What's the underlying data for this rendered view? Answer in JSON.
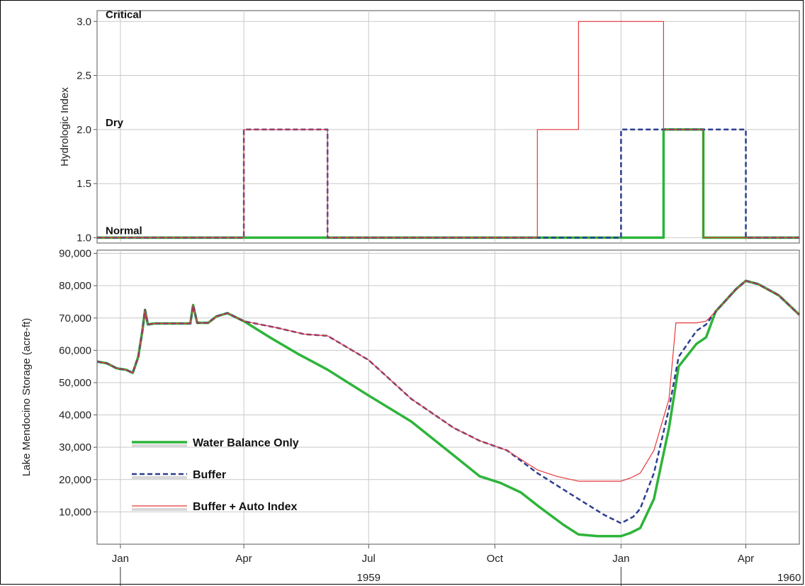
{
  "chart_data": [
    {
      "type": "line",
      "ylabel": "Hydrologic Index",
      "ylim": [
        0.95,
        3.1
      ],
      "yticks": [
        "1.0",
        "1.5",
        "2.0",
        "2.5",
        "3.0"
      ],
      "y_category_labels": [
        {
          "value": 1.0,
          "label": "Normal"
        },
        {
          "value": 2.0,
          "label": "Dry"
        },
        {
          "value": 3.0,
          "label": "Critical"
        }
      ],
      "grid": true,
      "series": [
        {
          "name": "Water Balance Only",
          "color": "#2db43a",
          "style": "solid-thick",
          "points": [
            [
              "1958-12-15",
              1
            ],
            [
              "1959-04-01",
              1
            ],
            [
              "1959-04-01",
              1
            ],
            [
              "1960-02-01",
              1
            ],
            [
              "1960-02-01",
              2
            ],
            [
              "1960-03-01",
              2
            ],
            [
              "1960-03-01",
              1
            ],
            [
              "1960-05-10",
              1
            ]
          ]
        },
        {
          "name": "Buffer",
          "color": "#2c3e91",
          "style": "dashed",
          "points": [
            [
              "1958-12-15",
              1
            ],
            [
              "1959-04-01",
              1
            ],
            [
              "1959-04-01",
              2
            ],
            [
              "1959-06-01",
              2
            ],
            [
              "1959-06-01",
              1
            ],
            [
              "1960-01-01",
              1
            ],
            [
              "1960-01-01",
              2
            ],
            [
              "1960-04-01",
              2
            ],
            [
              "1960-04-01",
              1
            ],
            [
              "1960-05-10",
              1
            ]
          ]
        },
        {
          "name": "Buffer + Auto Index",
          "color": "#e8383b",
          "style": "solid-thin",
          "points": [
            [
              "1958-12-15",
              1
            ],
            [
              "1959-04-01",
              1
            ],
            [
              "1959-04-01",
              2
            ],
            [
              "1959-06-01",
              2
            ],
            [
              "1959-06-01",
              1
            ],
            [
              "1959-11-01",
              1
            ],
            [
              "1959-11-01",
              2
            ],
            [
              "1959-12-01",
              2
            ],
            [
              "1959-12-01",
              3
            ],
            [
              "1960-02-01",
              3
            ],
            [
              "1960-02-01",
              2
            ],
            [
              "1960-03-01",
              2
            ],
            [
              "1960-03-01",
              1
            ],
            [
              "1960-05-10",
              1
            ]
          ]
        }
      ]
    },
    {
      "type": "line",
      "ylabel": "Lake Mendocino Storage (acre-ft)",
      "ylim": [
        0,
        91000
      ],
      "yticks": [
        "10,000",
        "20,000",
        "30,000",
        "40,000",
        "50,000",
        "60,000",
        "70,000",
        "80,000",
        "90,000"
      ],
      "grid": true,
      "legend": "bottom-left",
      "series": [
        {
          "name": "Water Balance Only",
          "color": "#2db43a",
          "style": "solid-thick",
          "points": [
            [
              "1958-12-15",
              56500
            ],
            [
              "1958-12-22",
              56000
            ],
            [
              "1958-12-29",
              54500
            ],
            [
              "1959-01-01",
              54200
            ],
            [
              "1959-01-05",
              54000
            ],
            [
              "1959-01-10",
              53000
            ],
            [
              "1959-01-14",
              58000
            ],
            [
              "1959-01-17",
              66000
            ],
            [
              "1959-01-19",
              72500
            ],
            [
              "1959-01-21",
              68000
            ],
            [
              "1959-01-26",
              68300
            ],
            [
              "1959-02-12",
              68300
            ],
            [
              "1959-02-21",
              68300
            ],
            [
              "1959-02-23",
              74000
            ],
            [
              "1959-02-26",
              68500
            ],
            [
              "1959-03-06",
              68500
            ],
            [
              "1959-03-12",
              70500
            ],
            [
              "1959-03-20",
              71500
            ],
            [
              "1959-04-01",
              69000
            ],
            [
              "1959-04-20",
              64000
            ],
            [
              "1959-05-10",
              59000
            ],
            [
              "1959-06-01",
              54000
            ],
            [
              "1959-07-01",
              46000
            ],
            [
              "1959-08-01",
              38000
            ],
            [
              "1959-09-01",
              27500
            ],
            [
              "1959-09-20",
              21000
            ],
            [
              "1959-10-05",
              19000
            ],
            [
              "1959-10-20",
              16000
            ],
            [
              "1959-11-01",
              12000
            ],
            [
              "1959-11-20",
              6000
            ],
            [
              "1959-12-01",
              3000
            ],
            [
              "1959-12-15",
              2500
            ],
            [
              "1960-01-01",
              2500
            ],
            [
              "1960-01-08",
              3500
            ],
            [
              "1960-01-15",
              5000
            ],
            [
              "1960-01-25",
              14000
            ],
            [
              "1960-02-05",
              36000
            ],
            [
              "1960-02-12",
              55000
            ],
            [
              "1960-02-25",
              62000
            ],
            [
              "1960-03-03",
              64000
            ],
            [
              "1960-03-10",
              72000
            ],
            [
              "1960-03-25",
              79000
            ],
            [
              "1960-04-01",
              81500
            ],
            [
              "1960-04-10",
              80500
            ],
            [
              "1960-04-25",
              77000
            ],
            [
              "1960-05-10",
              71000
            ]
          ]
        },
        {
          "name": "Buffer",
          "color": "#2c3e91",
          "style": "dashed",
          "points": [
            [
              "1958-12-15",
              56500
            ],
            [
              "1958-12-22",
              56000
            ],
            [
              "1958-12-29",
              54500
            ],
            [
              "1959-01-01",
              54200
            ],
            [
              "1959-01-05",
              54000
            ],
            [
              "1959-01-10",
              53000
            ],
            [
              "1959-01-14",
              58000
            ],
            [
              "1959-01-17",
              66000
            ],
            [
              "1959-01-19",
              72500
            ],
            [
              "1959-01-21",
              68000
            ],
            [
              "1959-01-26",
              68300
            ],
            [
              "1959-02-12",
              68300
            ],
            [
              "1959-02-21",
              68300
            ],
            [
              "1959-02-23",
              74000
            ],
            [
              "1959-02-26",
              68500
            ],
            [
              "1959-03-06",
              68500
            ],
            [
              "1959-03-12",
              70500
            ],
            [
              "1959-03-20",
              71500
            ],
            [
              "1959-04-01",
              69000
            ],
            [
              "1959-04-25",
              67000
            ],
            [
              "1959-05-15",
              65000
            ],
            [
              "1959-06-01",
              64500
            ],
            [
              "1959-07-01",
              57000
            ],
            [
              "1959-08-01",
              45000
            ],
            [
              "1959-09-01",
              36000
            ],
            [
              "1959-09-20",
              32000
            ],
            [
              "1959-10-10",
              29000
            ],
            [
              "1959-11-01",
              22000
            ],
            [
              "1959-12-01",
              14000
            ],
            [
              "1959-12-20",
              9000
            ],
            [
              "1960-01-01",
              6500
            ],
            [
              "1960-01-10",
              8500
            ],
            [
              "1960-01-15",
              11000
            ],
            [
              "1960-01-25",
              22000
            ],
            [
              "1960-02-05",
              42000
            ],
            [
              "1960-02-12",
              58000
            ],
            [
              "1960-02-25",
              66000
            ],
            [
              "1960-03-03",
              68000
            ],
            [
              "1960-03-10",
              72000
            ],
            [
              "1960-03-25",
              79000
            ],
            [
              "1960-04-01",
              81500
            ],
            [
              "1960-04-10",
              80500
            ],
            [
              "1960-04-25",
              77000
            ],
            [
              "1960-05-10",
              71000
            ]
          ]
        },
        {
          "name": "Buffer + Auto Index",
          "color": "#e8383b",
          "style": "solid-thin",
          "points": [
            [
              "1958-12-15",
              56500
            ],
            [
              "1958-12-22",
              56000
            ],
            [
              "1958-12-29",
              54500
            ],
            [
              "1959-01-01",
              54200
            ],
            [
              "1959-01-05",
              54000
            ],
            [
              "1959-01-10",
              53000
            ],
            [
              "1959-01-14",
              58000
            ],
            [
              "1959-01-17",
              66000
            ],
            [
              "1959-01-19",
              72500
            ],
            [
              "1959-01-21",
              68000
            ],
            [
              "1959-01-26",
              68300
            ],
            [
              "1959-02-12",
              68300
            ],
            [
              "1959-02-21",
              68300
            ],
            [
              "1959-02-23",
              74000
            ],
            [
              "1959-02-26",
              68500
            ],
            [
              "1959-03-06",
              68500
            ],
            [
              "1959-03-12",
              70500
            ],
            [
              "1959-03-20",
              71500
            ],
            [
              "1959-04-01",
              69000
            ],
            [
              "1959-04-25",
              67000
            ],
            [
              "1959-05-15",
              65000
            ],
            [
              "1959-06-01",
              64500
            ],
            [
              "1959-07-01",
              57000
            ],
            [
              "1959-08-01",
              45000
            ],
            [
              "1959-09-01",
              36000
            ],
            [
              "1959-09-20",
              32000
            ],
            [
              "1959-10-10",
              29000
            ],
            [
              "1959-11-01",
              23000
            ],
            [
              "1959-11-15",
              21000
            ],
            [
              "1959-12-01",
              19500
            ],
            [
              "1959-12-20",
              19500
            ],
            [
              "1960-01-01",
              19500
            ],
            [
              "1960-01-08",
              20500
            ],
            [
              "1960-01-15",
              22000
            ],
            [
              "1960-01-25",
              29000
            ],
            [
              "1960-02-05",
              45000
            ],
            [
              "1960-02-10",
              68500
            ],
            [
              "1960-02-25",
              68500
            ],
            [
              "1960-03-03",
              69000
            ],
            [
              "1960-03-10",
              72000
            ],
            [
              "1960-03-25",
              79000
            ],
            [
              "1960-04-01",
              81500
            ],
            [
              "1960-04-10",
              80500
            ],
            [
              "1960-04-25",
              77000
            ],
            [
              "1960-05-10",
              71000
            ]
          ]
        }
      ]
    }
  ],
  "x_axis": {
    "range": [
      "1958-12-15",
      "1960-05-10"
    ],
    "month_ticks": [
      {
        "date": "1959-01-01",
        "label": "Jan"
      },
      {
        "date": "1959-04-01",
        "label": "Apr"
      },
      {
        "date": "1959-07-01",
        "label": "Jul"
      },
      {
        "date": "1959-10-01",
        "label": "Oct"
      },
      {
        "date": "1960-01-01",
        "label": "Jan"
      },
      {
        "date": "1960-04-01",
        "label": "Apr"
      }
    ],
    "year_labels": [
      {
        "label": "1959",
        "center": "1959-07-01"
      },
      {
        "label": "1960",
        "center": "1960-07-01"
      }
    ]
  }
}
